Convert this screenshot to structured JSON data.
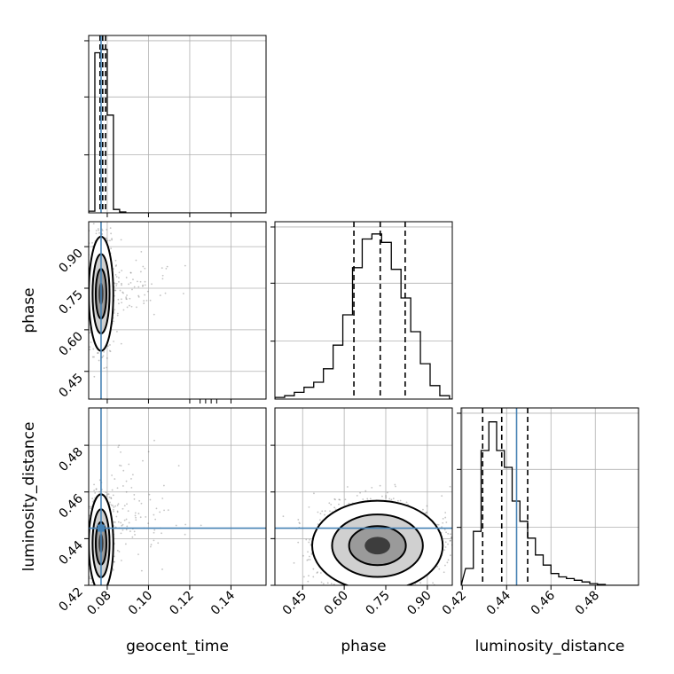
{
  "chart_data": {
    "type": "corner",
    "parameters": [
      "geocent_time",
      "phase",
      "luminosity_distance"
    ],
    "truths": {
      "geocent_time": 0.077,
      "luminosity_distance": 0.4445
    },
    "grid": true,
    "panels": [
      {
        "type": "histogram",
        "parameter": "geocent_time",
        "bins": [
          0.071,
          0.074,
          0.077,
          0.08,
          0.083,
          0.086,
          0.089
        ],
        "counts": [
          0.01,
          0.95,
          0.97,
          0.58,
          0.02,
          0.005
        ],
        "quantiles": [
          0.0765,
          0.0778,
          0.0792
        ],
        "xlim": [
          0.071,
          0.157
        ]
      },
      {
        "type": "scatter_contour",
        "x": "geocent_time",
        "y": "phase",
        "centroid": [
          0.077,
          0.73
        ],
        "xlim": [
          0.071,
          0.157
        ],
        "ylim": [
          0.35,
          0.99
        ],
        "xticks": [
          0.08,
          0.1,
          0.12,
          0.14
        ],
        "yticks": [
          0.45,
          0.6,
          0.75,
          0.9
        ]
      },
      {
        "type": "histogram",
        "parameter": "phase",
        "bins": [
          0.35,
          0.385,
          0.42,
          0.455,
          0.49,
          0.525,
          0.56,
          0.595,
          0.63,
          0.665,
          0.7,
          0.735,
          0.77,
          0.805,
          0.84,
          0.875,
          0.91,
          0.945,
          0.98
        ],
        "counts": [
          0.01,
          0.02,
          0.04,
          0.07,
          0.1,
          0.18,
          0.32,
          0.5,
          0.78,
          0.95,
          0.98,
          0.93,
          0.77,
          0.6,
          0.4,
          0.21,
          0.08,
          0.02
        ],
        "quantiles": [
          0.635,
          0.73,
          0.82
        ],
        "xlim": [
          0.35,
          0.99
        ]
      },
      {
        "type": "scatter_contour",
        "x": "geocent_time",
        "y": "luminosity_distance",
        "centroid": [
          0.077,
          0.438
        ],
        "xlim": [
          0.071,
          0.157
        ],
        "ylim": [
          0.42,
          0.496
        ],
        "xticks": [
          0.08,
          0.1,
          0.12,
          0.14
        ],
        "yticks": [
          0.42,
          0.44,
          0.46,
          0.48
        ]
      },
      {
        "type": "scatter_contour",
        "x": "phase",
        "y": "luminosity_distance",
        "centroid": [
          0.72,
          0.437
        ],
        "xlim": [
          0.35,
          0.99
        ],
        "ylim": [
          0.42,
          0.496
        ],
        "xticks": [
          0.45,
          0.6,
          0.75,
          0.9
        ],
        "yticks": [
          0.42,
          0.44,
          0.46,
          0.48
        ]
      },
      {
        "type": "histogram",
        "parameter": "luminosity_distance",
        "bins": [
          0.4215,
          0.425,
          0.4285,
          0.432,
          0.4355,
          0.439,
          0.4425,
          0.446,
          0.4495,
          0.453,
          0.4565,
          0.46,
          0.4635,
          0.467,
          0.4705,
          0.474,
          0.4775,
          0.481,
          0.4845
        ],
        "counts": [
          0.1,
          0.32,
          0.8,
          0.97,
          0.8,
          0.7,
          0.5,
          0.38,
          0.28,
          0.18,
          0.12,
          0.07,
          0.05,
          0.04,
          0.03,
          0.02,
          0.01,
          0.005
        ],
        "quantiles": [
          0.4292,
          0.4378,
          0.4495
        ],
        "xlim": [
          0.4195,
          0.4995
        ],
        "xticks": [
          0.42,
          0.44,
          0.46,
          0.48
        ]
      }
    ],
    "axis_labels": {
      "bottom": [
        "geocent_time",
        "phase",
        "luminosity_distance"
      ],
      "left": [
        "phase",
        "luminosity_distance"
      ]
    },
    "colors": {
      "truth": "#4682b4",
      "line": "#000000",
      "grid": "#b0b0b0",
      "points": "#555555"
    }
  }
}
